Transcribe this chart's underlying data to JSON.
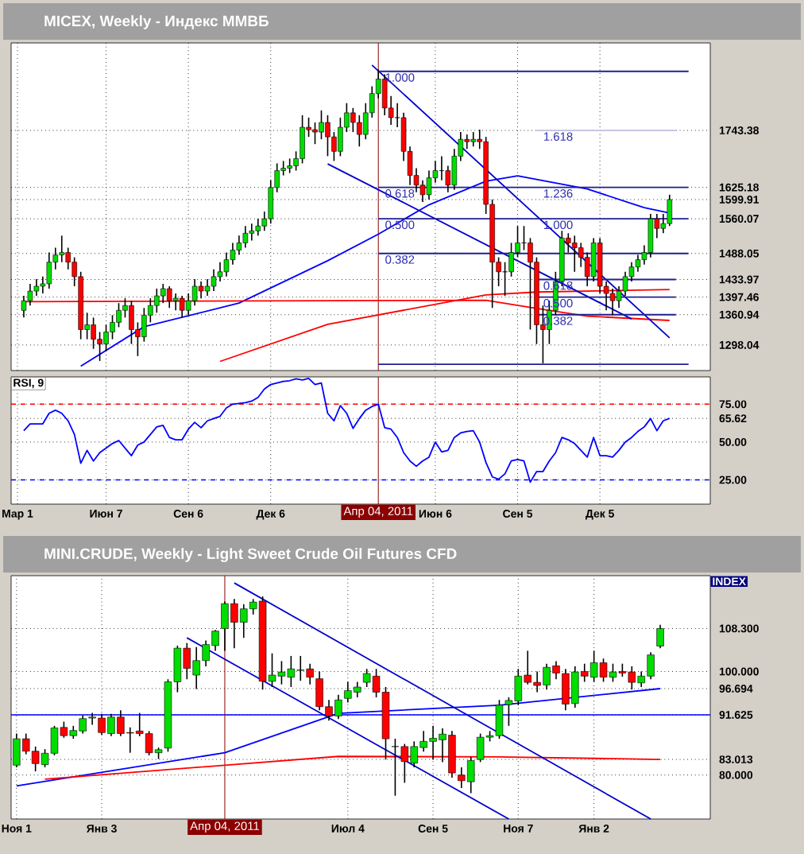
{
  "chart_data": [
    {
      "type": "candlestick",
      "title": "MICEX, Weekly - Индекс ММВБ",
      "x": [
        "2010-03-08",
        "2010-03-15",
        "2010-03-22",
        "2010-03-29",
        "2010-04-05",
        "2010-04-12",
        "2010-04-19",
        "2010-04-26",
        "2010-05-03",
        "2010-05-10",
        "2010-05-17",
        "2010-05-24",
        "2010-05-31",
        "2010-06-07",
        "2010-06-14",
        "2010-06-21",
        "2010-06-28",
        "2010-07-05",
        "2010-07-12",
        "2010-07-19",
        "2010-07-26",
        "2010-08-02",
        "2010-08-09",
        "2010-08-16",
        "2010-08-23",
        "2010-08-30",
        "2010-09-06",
        "2010-09-13",
        "2010-09-20",
        "2010-09-27",
        "2010-10-04",
        "2010-10-11",
        "2010-10-18",
        "2010-10-25",
        "2010-11-01",
        "2010-11-08",
        "2010-11-15",
        "2010-11-22",
        "2010-11-29",
        "2010-12-06",
        "2010-12-13",
        "2010-12-20",
        "2010-12-27",
        "2011-01-03",
        "2011-01-10",
        "2011-01-17",
        "2011-01-24",
        "2011-01-31",
        "2011-02-07",
        "2011-02-14",
        "2011-02-21",
        "2011-02-28",
        "2011-03-07",
        "2011-03-14",
        "2011-03-21",
        "2011-03-28",
        "2011-04-04",
        "2011-04-11",
        "2011-04-18",
        "2011-04-25",
        "2011-05-02",
        "2011-05-09",
        "2011-05-16",
        "2011-05-23",
        "2011-05-30",
        "2011-06-06",
        "2011-06-13",
        "2011-06-20",
        "2011-06-27",
        "2011-07-04",
        "2011-07-11",
        "2011-07-18",
        "2011-07-25",
        "2011-08-01",
        "2011-08-08",
        "2011-08-15",
        "2011-08-22",
        "2011-08-29",
        "2011-09-05",
        "2011-09-12",
        "2011-09-19",
        "2011-09-26",
        "2011-10-03",
        "2011-10-10",
        "2011-10-17",
        "2011-10-24",
        "2011-10-31",
        "2011-11-07",
        "2011-11-14",
        "2011-11-21",
        "2011-11-28",
        "2011-12-05",
        "2011-12-12",
        "2011-12-19",
        "2011-12-26",
        "2012-01-02",
        "2012-01-09",
        "2012-01-16",
        "2012-01-23",
        "2012-01-30",
        "2012-02-06",
        "2012-02-13",
        "2012-02-20"
      ],
      "ohlc": [
        [
          1370,
          1400,
          1355,
          1390
        ],
        [
          1390,
          1425,
          1380,
          1410
        ],
        [
          1410,
          1435,
          1400,
          1420
        ],
        [
          1420,
          1440,
          1405,
          1425
        ],
        [
          1425,
          1490,
          1415,
          1470
        ],
        [
          1470,
          1500,
          1455,
          1485
        ],
        [
          1485,
          1525,
          1470,
          1490
        ],
        [
          1490,
          1500,
          1455,
          1470
        ],
        [
          1470,
          1480,
          1420,
          1440
        ],
        [
          1440,
          1450,
          1310,
          1330
        ],
        [
          1330,
          1365,
          1310,
          1340
        ],
        [
          1340,
          1355,
          1290,
          1310
        ],
        [
          1310,
          1325,
          1265,
          1300
        ],
        [
          1300,
          1340,
          1285,
          1325
        ],
        [
          1325,
          1360,
          1310,
          1345
        ],
        [
          1345,
          1385,
          1335,
          1370
        ],
        [
          1370,
          1395,
          1355,
          1380
        ],
        [
          1380,
          1390,
          1300,
          1330
        ],
        [
          1330,
          1345,
          1275,
          1315
        ],
        [
          1315,
          1375,
          1305,
          1360
        ],
        [
          1360,
          1395,
          1345,
          1380
        ],
        [
          1380,
          1415,
          1365,
          1400
        ],
        [
          1400,
          1425,
          1385,
          1415
        ],
        [
          1415,
          1420,
          1375,
          1390
        ],
        [
          1390,
          1405,
          1370,
          1395
        ],
        [
          1395,
          1400,
          1355,
          1370
        ],
        [
          1370,
          1405,
          1360,
          1390
        ],
        [
          1390,
          1435,
          1380,
          1420
        ],
        [
          1420,
          1430,
          1395,
          1410
        ],
        [
          1410,
          1435,
          1400,
          1420
        ],
        [
          1420,
          1455,
          1410,
          1440
        ],
        [
          1440,
          1470,
          1430,
          1450
        ],
        [
          1450,
          1490,
          1440,
          1475
        ],
        [
          1475,
          1510,
          1465,
          1495
        ],
        [
          1495,
          1525,
          1485,
          1510
        ],
        [
          1510,
          1545,
          1500,
          1530
        ],
        [
          1530,
          1550,
          1515,
          1535
        ],
        [
          1535,
          1560,
          1525,
          1545
        ],
        [
          1545,
          1575,
          1535,
          1560
        ],
        [
          1560,
          1640,
          1550,
          1625
        ],
        [
          1625,
          1675,
          1615,
          1660
        ],
        [
          1660,
          1680,
          1650,
          1665
        ],
        [
          1665,
          1685,
          1655,
          1670
        ],
        [
          1670,
          1700,
          1660,
          1685
        ],
        [
          1685,
          1775,
          1675,
          1750
        ],
        [
          1750,
          1770,
          1730,
          1745
        ],
        [
          1745,
          1760,
          1715,
          1740
        ],
        [
          1740,
          1785,
          1725,
          1760
        ],
        [
          1760,
          1775,
          1690,
          1730
        ],
        [
          1730,
          1740,
          1680,
          1700
        ],
        [
          1700,
          1770,
          1690,
          1750
        ],
        [
          1750,
          1800,
          1740,
          1780
        ],
        [
          1780,
          1790,
          1740,
          1760
        ],
        [
          1760,
          1775,
          1710,
          1735
        ],
        [
          1735,
          1800,
          1725,
          1780
        ],
        [
          1780,
          1835,
          1770,
          1820
        ],
        [
          1820,
          1870,
          1810,
          1850
        ],
        [
          1850,
          1860,
          1775,
          1790
        ],
        [
          1790,
          1815,
          1755,
          1770
        ],
        [
          1770,
          1800,
          1750,
          1770
        ],
        [
          1770,
          1780,
          1680,
          1700
        ],
        [
          1700,
          1710,
          1630,
          1650
        ],
        [
          1650,
          1665,
          1615,
          1630
        ],
        [
          1630,
          1640,
          1595,
          1610
        ],
        [
          1610,
          1660,
          1600,
          1645
        ],
        [
          1645,
          1680,
          1635,
          1660
        ],
        [
          1660,
          1690,
          1640,
          1660
        ],
        [
          1660,
          1670,
          1615,
          1630
        ],
        [
          1630,
          1705,
          1620,
          1690
        ],
        [
          1690,
          1740,
          1680,
          1725
        ],
        [
          1725,
          1735,
          1705,
          1720
        ],
        [
          1720,
          1740,
          1710,
          1725
        ],
        [
          1725,
          1745,
          1705,
          1720
        ],
        [
          1720,
          1730,
          1570,
          1590
        ],
        [
          1590,
          1600,
          1375,
          1470
        ],
        [
          1470,
          1480,
          1420,
          1450
        ],
        [
          1450,
          1470,
          1400,
          1450
        ],
        [
          1450,
          1510,
          1440,
          1490
        ],
        [
          1490,
          1545,
          1480,
          1510
        ],
        [
          1510,
          1545,
          1495,
          1510
        ],
        [
          1510,
          1520,
          1330,
          1470
        ],
        [
          1470,
          1480,
          1300,
          1340
        ],
        [
          1340,
          1380,
          1260,
          1330
        ],
        [
          1330,
          1390,
          1300,
          1370
        ],
        [
          1370,
          1450,
          1360,
          1430
        ],
        [
          1430,
          1535,
          1420,
          1520
        ],
        [
          1520,
          1530,
          1490,
          1510
        ],
        [
          1510,
          1525,
          1450,
          1500
        ],
        [
          1500,
          1510,
          1460,
          1480
        ],
        [
          1480,
          1490,
          1420,
          1440
        ],
        [
          1440,
          1520,
          1430,
          1510
        ],
        [
          1510,
          1520,
          1405,
          1420
        ],
        [
          1420,
          1430,
          1370,
          1405
        ],
        [
          1405,
          1415,
          1360,
          1390
        ],
        [
          1390,
          1420,
          1375,
          1410
        ],
        [
          1410,
          1450,
          1400,
          1440
        ],
        [
          1440,
          1470,
          1430,
          1460
        ],
        [
          1460,
          1485,
          1450,
          1475
        ],
        [
          1475,
          1505,
          1465,
          1490
        ],
        [
          1490,
          1570,
          1480,
          1560
        ],
        [
          1560,
          1570,
          1520,
          1540
        ],
        [
          1540,
          1570,
          1530,
          1550
        ],
        [
          1550,
          1610,
          1545,
          1599.91
        ]
      ],
      "series": [
        {
          "type": "line",
          "color": "#0000ff",
          "x": [
            "2010-05-10",
            "2010-07-19",
            "2010-11-01",
            "2011-02-07",
            "2011-04-04",
            "2011-05-30",
            "2011-08-01",
            "2011-09-05",
            "2011-11-21",
            "2012-01-23",
            "2012-02-20"
          ],
          "values": [
            1254,
            1336,
            1385,
            1473,
            1528,
            1589,
            1638,
            1649,
            1622,
            1583,
            1572
          ]
        },
        {
          "type": "line",
          "color": "#ff0000",
          "x": [
            "2010-03-08",
            "2011-08-01",
            "2011-09-26",
            "2011-11-21",
            "2012-02-20"
          ],
          "values": [
            1388,
            1391,
            1374,
            1358,
            1349
          ]
        },
        {
          "type": "line",
          "color": "#ff0000",
          "x": [
            "2010-10-11",
            "2011-02-07",
            "2011-08-01",
            "2011-09-26",
            "2012-02-20"
          ],
          "values": [
            1264,
            1341,
            1402,
            1408,
            1413
          ]
        },
        {
          "type": "line",
          "color": "#0000cc",
          "x": [
            "2011-03-28",
            "2012-02-20"
          ],
          "values": [
            1879,
            1313
          ]
        },
        {
          "type": "line",
          "color": "#0000cc",
          "x": [
            "2011-02-07",
            "2012-01-09"
          ],
          "values": [
            1674,
            1352
          ]
        },
        {
          "type": "line",
          "color": "#202090",
          "x": [
            "2011-04-04",
            "2012-03-12"
          ],
          "values": [
            1866,
            1866
          ]
        },
        {
          "type": "line",
          "color": "#202090",
          "x": [
            "2011-04-04",
            "2012-03-12"
          ],
          "values": [
            1625.18,
            1625.18
          ]
        },
        {
          "type": "line",
          "color": "#202090",
          "x": [
            "2011-04-04",
            "2012-03-12"
          ],
          "values": [
            1560.07,
            1560.07
          ]
        },
        {
          "type": "line",
          "color": "#202090",
          "x": [
            "2011-04-04",
            "2012-03-12"
          ],
          "values": [
            1488.05,
            1488.05
          ]
        },
        {
          "type": "line",
          "color": "#202090",
          "x": [
            "2011-04-04",
            "2012-03-12"
          ],
          "values": [
            1258,
            1258
          ]
        },
        {
          "type": "line",
          "color": "#c0c0e0",
          "x": [
            "2011-09-26",
            "2012-02-27"
          ],
          "values": [
            1743.38,
            1743.38
          ]
        },
        {
          "type": "line",
          "color": "#202090",
          "x": [
            "2011-09-26",
            "2012-02-27"
          ],
          "values": [
            1433.97,
            1433.97
          ]
        },
        {
          "type": "line",
          "color": "#202090",
          "x": [
            "2011-09-26",
            "2012-02-27"
          ],
          "values": [
            1397.46,
            1397.46
          ]
        },
        {
          "type": "line",
          "color": "#202090",
          "x": [
            "2011-09-26",
            "2012-02-27"
          ],
          "values": [
            1360.94,
            1360.94
          ]
        }
      ],
      "xlim": [
        "2010-02-22",
        "2012-04-05"
      ],
      "ylim": [
        1245,
        1925
      ],
      "xticks": [
        {
          "value": "2010-03-01",
          "label": null
        },
        {
          "value": "2010-06-07",
          "label": null
        },
        {
          "value": "2010-09-06",
          "label": null
        },
        {
          "value": "2010-12-06",
          "label": null
        },
        {
          "value": "2011-06-06",
          "label": null
        },
        {
          "value": "2011-09-05",
          "label": null
        },
        {
          "value": "2011-12-05",
          "label": null
        }
      ],
      "yticks": [
        1298.04,
        1360.94,
        1397.46,
        1433.97,
        1488.05,
        1560.07,
        1599.91,
        1625.18,
        1743.38
      ],
      "tick_labels": "y",
      "grid": true,
      "ref_lines": [
        {
          "axis": "x",
          "value": "2011-04-04",
          "color": "#8b0000"
        }
      ],
      "annotations": [
        {
          "text": "1.000",
          "x": "2011-04-04",
          "y": 1866
        },
        {
          "text": "0.618",
          "x": "2011-04-04",
          "y": 1625.18
        },
        {
          "text": "0.500",
          "x": "2011-04-04",
          "y": 1560.07
        },
        {
          "text": "0.382",
          "x": "2011-04-04",
          "y": 1488.05
        },
        {
          "text": "1.618",
          "x": "2011-09-26",
          "y": 1743.38
        },
        {
          "text": "1.236",
          "x": "2011-09-26",
          "y": 1625.18
        },
        {
          "text": "1.000",
          "x": "2011-09-26",
          "y": 1560.07
        },
        {
          "text": "0.618",
          "x": "2011-09-26",
          "y": 1433.97
        },
        {
          "text": "0.500",
          "x": "2011-09-26",
          "y": 1397.46
        },
        {
          "text": "0.382",
          "x": "2011-09-26",
          "y": 1360.94
        }
      ]
    },
    {
      "type": "line",
      "title": "RSI, 9",
      "x": [
        "2010-03-08",
        "2010-03-15",
        "2010-03-22",
        "2010-03-29",
        "2010-04-05",
        "2010-04-12",
        "2010-04-19",
        "2010-04-26",
        "2010-05-03",
        "2010-05-10",
        "2010-05-17",
        "2010-05-24",
        "2010-05-31",
        "2010-06-07",
        "2010-06-14",
        "2010-06-21",
        "2010-06-28",
        "2010-07-05",
        "2010-07-12",
        "2010-07-19",
        "2010-07-26",
        "2010-08-02",
        "2010-08-09",
        "2010-08-16",
        "2010-08-23",
        "2010-08-30",
        "2010-09-06",
        "2010-09-13",
        "2010-09-20",
        "2010-09-27",
        "2010-10-04",
        "2010-10-11",
        "2010-10-18",
        "2010-10-25",
        "2010-11-01",
        "2010-11-08",
        "2010-11-15",
        "2010-11-22",
        "2010-11-29",
        "2010-12-06",
        "2010-12-13",
        "2010-12-20",
        "2010-12-27",
        "2011-01-03",
        "2011-01-10",
        "2011-01-17",
        "2011-01-24",
        "2011-01-31",
        "2011-02-07",
        "2011-02-14",
        "2011-02-21",
        "2011-02-28",
        "2011-03-07",
        "2011-03-14",
        "2011-03-21",
        "2011-03-28",
        "2011-04-04",
        "2011-04-11",
        "2011-04-18",
        "2011-04-25",
        "2011-05-02",
        "2011-05-09",
        "2011-05-16",
        "2011-05-23",
        "2011-05-30",
        "2011-06-06",
        "2011-06-13",
        "2011-06-20",
        "2011-06-27",
        "2011-07-04",
        "2011-07-11",
        "2011-07-18",
        "2011-07-25",
        "2011-08-01",
        "2011-08-08",
        "2011-08-15",
        "2011-08-22",
        "2011-08-29",
        "2011-09-05",
        "2011-09-12",
        "2011-09-19",
        "2011-09-26",
        "2011-10-03",
        "2011-10-10",
        "2011-10-17",
        "2011-10-24",
        "2011-10-31",
        "2011-11-07",
        "2011-11-14",
        "2011-11-21",
        "2011-11-28",
        "2011-12-05",
        "2011-12-12",
        "2011-12-19",
        "2011-12-26",
        "2012-01-02",
        "2012-01-09",
        "2012-01-16",
        "2012-01-23",
        "2012-01-30",
        "2012-02-06",
        "2012-02-13",
        "2012-02-20"
      ],
      "series": [
        {
          "color": "#0000ff",
          "values": [
            57.5,
            62,
            62,
            62,
            69,
            71,
            69,
            64,
            55,
            36,
            44.5,
            37.5,
            43,
            46,
            49,
            51,
            46,
            41,
            48,
            50,
            55,
            60,
            61,
            53,
            51.5,
            51.5,
            58.5,
            63,
            59.5,
            64,
            65.5,
            67,
            72.5,
            75,
            75.5,
            76,
            77,
            79.5,
            85,
            88,
            89,
            90,
            90.5,
            91.8,
            91,
            92,
            88,
            89,
            69,
            64,
            74,
            69,
            59,
            65.5,
            71,
            73.5,
            75,
            59.5,
            58.5,
            53,
            43,
            37.5,
            34,
            37.5,
            40,
            50,
            43.5,
            44.5,
            53,
            56,
            57,
            57.5,
            50,
            36.5,
            27,
            25.5,
            29,
            37.5,
            38.5,
            37.5,
            23.5,
            30.5,
            30.5,
            37.5,
            43,
            53,
            51.5,
            49,
            44.5,
            40,
            53,
            41,
            41,
            40,
            44.5,
            50,
            53,
            57,
            60,
            65.5,
            57.5,
            64,
            65.62
          ]
        }
      ],
      "xlim": [
        "2010-02-22",
        "2012-04-05"
      ],
      "ylim": [
        9,
        93
      ],
      "xticks": [
        {
          "value": "2010-03-01",
          "label": "Мар 1"
        },
        {
          "value": "2010-06-07",
          "label": "Июн 7"
        },
        {
          "value": "2010-09-06",
          "label": "Сен 6"
        },
        {
          "value": "2010-12-06",
          "label": "Дек 6"
        },
        {
          "value": "2011-06-06",
          "label": "Июн 6"
        },
        {
          "value": "2011-09-05",
          "label": "Сен 5"
        },
        {
          "value": "2011-12-05",
          "label": "Дек 5"
        }
      ],
      "yticks": [
        {
          "value": 25,
          "label": "25.00"
        },
        {
          "value": 50,
          "label": "50.00"
        },
        65.62,
        {
          "value": 75,
          "label": "75.00"
        }
      ],
      "grid": true,
      "ref_lines": [
        {
          "axis": "y",
          "value": 75,
          "color": "#ff0000",
          "line_style": "dashed"
        },
        {
          "axis": "y",
          "value": 25,
          "color": "#0000ff",
          "line_style": "dashed"
        },
        {
          "axis": "x",
          "value": "2011-04-04",
          "label": "Апр 04, 2011",
          "color": "#8b0000"
        }
      ]
    },
    {
      "type": "candlestick",
      "title": "MINI.CRUDE, Weekly - Light Sweet Crude Oil Futures CFD",
      "x": [
        "2010-11-01",
        "2010-11-08",
        "2010-11-15",
        "2010-11-22",
        "2010-11-29",
        "2010-12-06",
        "2010-12-13",
        "2010-12-20",
        "2010-12-27",
        "2011-01-03",
        "2011-01-10",
        "2011-01-17",
        "2011-01-24",
        "2011-01-31",
        "2011-02-07",
        "2011-02-14",
        "2011-02-21",
        "2011-02-28",
        "2011-03-07",
        "2011-03-14",
        "2011-03-21",
        "2011-03-28",
        "2011-04-04",
        "2011-04-11",
        "2011-04-18",
        "2011-04-25",
        "2011-05-02",
        "2011-05-09",
        "2011-05-16",
        "2011-05-23",
        "2011-05-30",
        "2011-06-06",
        "2011-06-13",
        "2011-06-20",
        "2011-06-27",
        "2011-07-04",
        "2011-07-11",
        "2011-07-18",
        "2011-07-25",
        "2011-08-01",
        "2011-08-08",
        "2011-08-15",
        "2011-08-22",
        "2011-08-29",
        "2011-09-05",
        "2011-09-12",
        "2011-09-19",
        "2011-09-26",
        "2011-10-03",
        "2011-10-10",
        "2011-10-17",
        "2011-10-24",
        "2011-10-31",
        "2011-11-07",
        "2011-11-14",
        "2011-11-21",
        "2011-11-28",
        "2011-12-05",
        "2011-12-12",
        "2011-12-19",
        "2011-12-26",
        "2012-01-02",
        "2012-01-09",
        "2012-01-16",
        "2012-01-23",
        "2012-01-30",
        "2012-02-06",
        "2012-02-13",
        "2012-02-20"
      ],
      "ohlc": [
        [
          81.9,
          88.0,
          81.5,
          87.0
        ],
        [
          87.0,
          88.0,
          84.0,
          84.6
        ],
        [
          84.6,
          85.5,
          80.7,
          82.2
        ],
        [
          82.0,
          85.0,
          81.5,
          84.2
        ],
        [
          84.2,
          89.5,
          83.8,
          89.1
        ],
        [
          89.2,
          90.3,
          87.2,
          87.6
        ],
        [
          87.6,
          89.5,
          87.0,
          88.6
        ],
        [
          88.5,
          91.5,
          88.0,
          90.9
        ],
        [
          91.0,
          92.0,
          89.7,
          91.2
        ],
        [
          91.0,
          91.8,
          87.8,
          88.2
        ],
        [
          88.0,
          91.8,
          87.5,
          91.2
        ],
        [
          91.2,
          92.5,
          87.5,
          88.0
        ],
        [
          88.2,
          89.2,
          84.3,
          88.1
        ],
        [
          88.5,
          92.0,
          87.5,
          88.0
        ],
        [
          88.0,
          88.5,
          83.8,
          84.3
        ],
        [
          84.3,
          85.3,
          83.1,
          84.9
        ],
        [
          85.2,
          98.5,
          84.5,
          98.0
        ],
        [
          98.0,
          105.0,
          96.0,
          104.5
        ],
        [
          104.5,
          105.5,
          98.5,
          100.6
        ],
        [
          99.3,
          104.7,
          96.6,
          102.1
        ],
        [
          102.1,
          106.0,
          101.0,
          105.2
        ],
        [
          105.0,
          108.0,
          104.0,
          107.8
        ],
        [
          108.3,
          113.5,
          104.0,
          113.1
        ],
        [
          113.1,
          114.0,
          104.5,
          109.5
        ],
        [
          109.5,
          113.0,
          106.5,
          112.1
        ],
        [
          112.1,
          114.0,
          111.0,
          113.4
        ],
        [
          113.6,
          114.5,
          96.5,
          98.1
        ],
        [
          98.1,
          103.5,
          97.0,
          99.3
        ],
        [
          99.1,
          102.0,
          97.5,
          99.9
        ],
        [
          98.9,
          103.0,
          97.0,
          100.5
        ],
        [
          100.2,
          103.0,
          98.2,
          100.3
        ],
        [
          100.5,
          101.5,
          97.5,
          98.9
        ],
        [
          98.6,
          100.0,
          92.5,
          93.2
        ],
        [
          93.2,
          94.5,
          90.5,
          91.4
        ],
        [
          91.4,
          95.5,
          90.8,
          94.5
        ],
        [
          94.8,
          98.0,
          94.0,
          96.3
        ],
        [
          96.0,
          98.0,
          95.0,
          97.0
        ],
        [
          97.9,
          100.5,
          97.0,
          99.6
        ],
        [
          99.1,
          100.5,
          95.0,
          96.0
        ],
        [
          96.0,
          97.0,
          83.0,
          87.0
        ],
        [
          85.5,
          87.0,
          76.0,
          85.5
        ],
        [
          85.5,
          86.0,
          78.5,
          82.6
        ],
        [
          82.3,
          86.5,
          81.5,
          85.5
        ],
        [
          85.3,
          88.5,
          84.5,
          86.5
        ],
        [
          86.5,
          89.5,
          83.0,
          87.1
        ],
        [
          86.8,
          89.0,
          82.5,
          87.9
        ],
        [
          87.7,
          88.5,
          79.5,
          80.4
        ],
        [
          80.0,
          81.5,
          77.5,
          78.9
        ],
        [
          78.7,
          83.5,
          76.5,
          82.8
        ],
        [
          83.0,
          88.0,
          82.5,
          87.3
        ],
        [
          87.3,
          88.5,
          86.5,
          87.6
        ],
        [
          87.6,
          94.5,
          87.0,
          93.5
        ],
        [
          93.6,
          95.0,
          89.5,
          94.4
        ],
        [
          94.3,
          100.5,
          93.5,
          99.1
        ],
        [
          99.3,
          104.0,
          97.5,
          97.9
        ],
        [
          97.9,
          100.0,
          96.0,
          97.3
        ],
        [
          97.4,
          101.5,
          96.5,
          100.8
        ],
        [
          101.1,
          102.0,
          98.5,
          99.7
        ],
        [
          99.6,
          100.5,
          92.5,
          93.7
        ],
        [
          93.8,
          101.0,
          93.0,
          99.9
        ],
        [
          100.0,
          101.5,
          98.0,
          99.1
        ],
        [
          98.9,
          104.0,
          98.0,
          101.7
        ],
        [
          101.7,
          102.5,
          98.0,
          98.9
        ],
        [
          98.9,
          101.5,
          98.0,
          99.9
        ],
        [
          100.0,
          101.5,
          99.0,
          99.7
        ],
        [
          99.9,
          101.0,
          96.5,
          97.9
        ],
        [
          97.8,
          100.0,
          97.0,
          99.1
        ],
        [
          99.1,
          103.7,
          98.5,
          103.2
        ],
        [
          104.9,
          109.0,
          104.5,
          108.3
        ]
      ],
      "series": [
        {
          "type": "line",
          "color": "#0000ff",
          "x": [
            "2010-11-01",
            "2011-04-04",
            "2011-06-27",
            "2011-10-24",
            "2012-02-20"
          ],
          "values": [
            77.9,
            84.3,
            91.9,
            93.5,
            96.694
          ]
        },
        {
          "type": "line",
          "color": "#ff0000",
          "x": [
            "2010-11-22",
            "2011-04-04",
            "2011-06-27",
            "2011-10-24",
            "2012-02-20"
          ],
          "values": [
            79.2,
            81.9,
            83.6,
            83.5,
            83.013
          ]
        },
        {
          "type": "line",
          "color": "#0000cc",
          "x": [
            "2011-04-11",
            "2012-02-13"
          ],
          "values": [
            117.1,
            71.5
          ]
        },
        {
          "type": "line",
          "color": "#0000cc",
          "x": [
            "2011-03-07",
            "2011-10-31"
          ],
          "values": [
            106.5,
            71.5
          ]
        }
      ],
      "xlim": [
        "2010-10-28",
        "2012-03-28"
      ],
      "ylim": [
        71.5,
        118.5
      ],
      "xticks": [
        {
          "value": "2010-11-01",
          "label": "Ноя 1"
        },
        {
          "value": "2011-01-03",
          "label": "Янв 3"
        },
        {
          "value": "2011-07-04",
          "label": "Июл 4"
        },
        {
          "value": "2011-09-05",
          "label": "Сен 5"
        },
        {
          "value": "2011-11-07",
          "label": "Ноя 7"
        },
        {
          "value": "2012-01-02",
          "label": "Янв 2"
        }
      ],
      "yticks": [
        {
          "value": 80,
          "label": "80.000"
        },
        83.013,
        91.625,
        96.694,
        {
          "value": 100,
          "label": "100.000"
        },
        {
          "value": 108.3,
          "label": "108.300"
        }
      ],
      "grid": true,
      "ref_lines": [
        {
          "axis": "y",
          "value": 91.625,
          "color": "#0000ff"
        },
        {
          "axis": "x",
          "value": "2011-04-04",
          "label": "Апр 04, 2011",
          "color": "#8b0000"
        }
      ],
      "annotations": [
        "INDEX"
      ]
    }
  ]
}
